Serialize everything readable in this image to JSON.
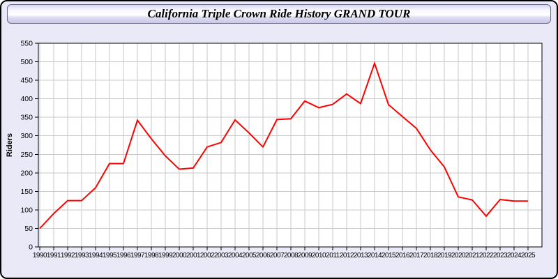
{
  "window": {
    "title": "California Triple Crown Ride History GRAND TOUR"
  },
  "chart_data": {
    "type": "line",
    "title": "California Triple Crown Ride History GRAND TOUR",
    "xlabel": "",
    "ylabel": "Riders",
    "x": [
      1990,
      1991,
      1992,
      1993,
      1994,
      1995,
      1996,
      1997,
      1998,
      1999,
      2000,
      2001,
      2002,
      2003,
      2004,
      2005,
      2006,
      2007,
      2008,
      2009,
      2010,
      2011,
      2012,
      2013,
      2014,
      2015,
      2016,
      2017,
      2018,
      2019,
      2020,
      2021,
      2022,
      2023,
      2024,
      2025
    ],
    "series": [
      {
        "name": "Riders",
        "color": "#ff0000",
        "values": [
          50,
          90,
          125,
          125,
          160,
          225,
          225,
          342,
          292,
          246,
          210,
          213,
          270,
          282,
          343,
          308,
          270,
          344,
          346,
          394,
          376,
          385,
          413,
          387,
          496,
          384,
          352,
          320,
          262,
          216,
          135,
          127,
          83,
          128,
          124,
          124
        ]
      }
    ],
    "ylim": [
      0,
      550
    ],
    "ytick_step": 50,
    "grid": true,
    "legend": "none"
  },
  "style": {
    "page_bg": "#e9e9f8",
    "plot_bg": "#ffffff",
    "grid_color": "#c9c9c9",
    "axis_color": "#000000",
    "tick_label_color": "#000000"
  }
}
